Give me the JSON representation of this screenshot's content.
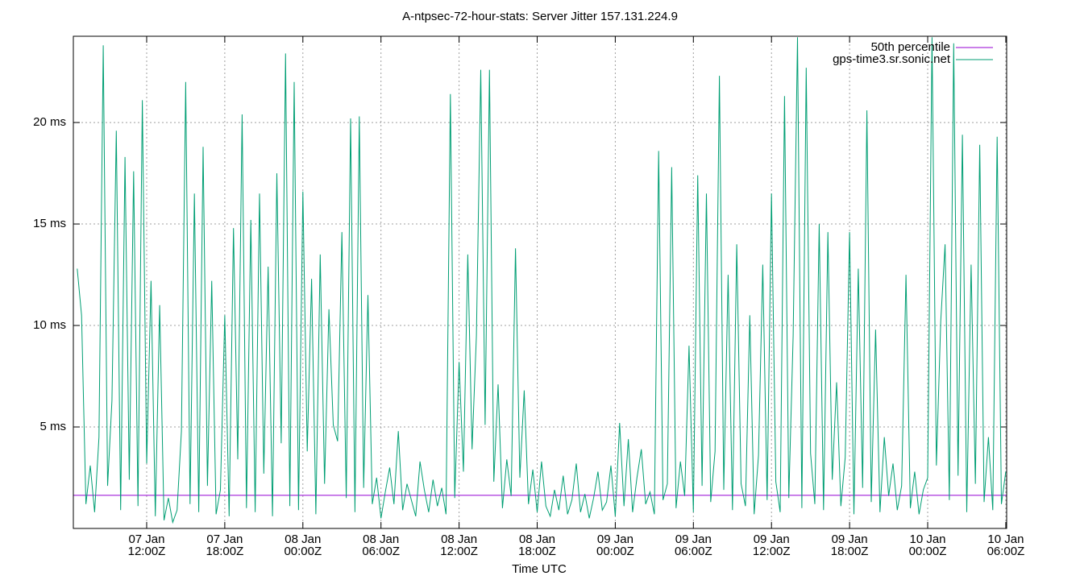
{
  "chart_data": {
    "type": "line",
    "title": "A-ntpsec-72-hour-stats: Server Jitter 157.131.224.9",
    "xlabel": "Time UTC",
    "xlim": [
      "07 Jan 06:22Z",
      "10 Jan 06:04Z"
    ],
    "ylim": [
      0,
      24.25
    ],
    "grid": true,
    "legend": "top-right",
    "yticks": [
      {
        "value": 5,
        "label": "5 ms"
      },
      {
        "value": 10,
        "label": "10 ms"
      },
      {
        "value": 15,
        "label": "15 ms"
      },
      {
        "value": 20,
        "label": "20 ms"
      }
    ],
    "xticks": [
      {
        "value": "07 Jan 12:00Z",
        "label": [
          "07 Jan",
          "12:00Z"
        ]
      },
      {
        "value": "07 Jan 18:00Z",
        "label": [
          "07 Jan",
          "18:00Z"
        ]
      },
      {
        "value": "08 Jan 00:00Z",
        "label": [
          "08 Jan",
          "00:00Z"
        ]
      },
      {
        "value": "08 Jan 06:00Z",
        "label": [
          "08 Jan",
          "06:00Z"
        ]
      },
      {
        "value": "08 Jan 12:00Z",
        "label": [
          "08 Jan",
          "12:00Z"
        ]
      },
      {
        "value": "08 Jan 18:00Z",
        "label": [
          "08 Jan",
          "18:00Z"
        ]
      },
      {
        "value": "09 Jan 00:00Z",
        "label": [
          "09 Jan",
          "00:00Z"
        ]
      },
      {
        "value": "09 Jan 06:00Z",
        "label": [
          "09 Jan",
          "06:00Z"
        ]
      },
      {
        "value": "09 Jan 12:00Z",
        "label": [
          "09 Jan",
          "12:00Z"
        ]
      },
      {
        "value": "09 Jan 18:00Z",
        "label": [
          "09 Jan",
          "18:00Z"
        ]
      },
      {
        "value": "10 Jan 00:00Z",
        "label": [
          "10 Jan",
          "00:00Z"
        ]
      },
      {
        "value": "10 Jan 06:00Z",
        "label": [
          "10 Jan",
          "06:00Z"
        ]
      }
    ],
    "x": [
      "07 Jan 06:40Z",
      "07 Jan 07:00Z",
      "07 Jan 07:20Z",
      "07 Jan 07:40Z",
      "07 Jan 08:00Z",
      "07 Jan 08:20Z",
      "07 Jan 08:40Z",
      "07 Jan 09:00Z",
      "07 Jan 09:20Z",
      "07 Jan 09:40Z",
      "07 Jan 10:00Z",
      "07 Jan 10:20Z",
      "07 Jan 10:40Z",
      "07 Jan 11:00Z",
      "07 Jan 11:20Z",
      "07 Jan 11:40Z",
      "07 Jan 12:00Z",
      "07 Jan 12:20Z",
      "07 Jan 12:40Z",
      "07 Jan 13:00Z",
      "07 Jan 13:20Z",
      "07 Jan 13:40Z",
      "07 Jan 14:00Z",
      "07 Jan 14:20Z",
      "07 Jan 14:40Z",
      "07 Jan 15:00Z",
      "07 Jan 15:20Z",
      "07 Jan 15:40Z",
      "07 Jan 16:00Z",
      "07 Jan 16:20Z",
      "07 Jan 16:40Z",
      "07 Jan 17:00Z",
      "07 Jan 17:20Z",
      "07 Jan 17:40Z",
      "07 Jan 18:00Z",
      "07 Jan 18:20Z",
      "07 Jan 18:40Z",
      "07 Jan 19:00Z",
      "07 Jan 19:20Z",
      "07 Jan 19:40Z",
      "07 Jan 20:00Z",
      "07 Jan 20:20Z",
      "07 Jan 20:40Z",
      "07 Jan 21:00Z",
      "07 Jan 21:20Z",
      "07 Jan 21:40Z",
      "07 Jan 22:00Z",
      "07 Jan 22:20Z",
      "07 Jan 22:40Z",
      "07 Jan 23:00Z",
      "07 Jan 23:20Z",
      "07 Jan 23:40Z",
      "08 Jan 00:00Z",
      "08 Jan 00:20Z",
      "08 Jan 00:40Z",
      "08 Jan 01:00Z",
      "08 Jan 01:20Z",
      "08 Jan 01:40Z",
      "08 Jan 02:00Z",
      "08 Jan 02:20Z",
      "08 Jan 02:40Z",
      "08 Jan 03:00Z",
      "08 Jan 03:20Z",
      "08 Jan 03:40Z",
      "08 Jan 04:00Z",
      "08 Jan 04:20Z",
      "08 Jan 04:40Z",
      "08 Jan 05:00Z",
      "08 Jan 05:20Z",
      "08 Jan 05:40Z",
      "08 Jan 06:00Z",
      "08 Jan 06:20Z",
      "08 Jan 06:40Z",
      "08 Jan 07:00Z",
      "08 Jan 07:20Z",
      "08 Jan 07:40Z",
      "08 Jan 08:00Z",
      "08 Jan 08:20Z",
      "08 Jan 08:40Z",
      "08 Jan 09:00Z",
      "08 Jan 09:20Z",
      "08 Jan 09:40Z",
      "08 Jan 10:00Z",
      "08 Jan 10:20Z",
      "08 Jan 10:40Z",
      "08 Jan 11:00Z",
      "08 Jan 11:20Z",
      "08 Jan 11:40Z",
      "08 Jan 12:00Z",
      "08 Jan 12:20Z",
      "08 Jan 12:40Z",
      "08 Jan 13:00Z",
      "08 Jan 13:20Z",
      "08 Jan 13:40Z",
      "08 Jan 14:00Z",
      "08 Jan 14:20Z",
      "08 Jan 14:40Z",
      "08 Jan 15:00Z",
      "08 Jan 15:20Z",
      "08 Jan 15:40Z",
      "08 Jan 16:00Z",
      "08 Jan 16:20Z",
      "08 Jan 16:40Z",
      "08 Jan 17:00Z",
      "08 Jan 17:20Z",
      "08 Jan 17:40Z",
      "08 Jan 18:00Z",
      "08 Jan 18:20Z",
      "08 Jan 18:40Z",
      "08 Jan 19:00Z",
      "08 Jan 19:20Z",
      "08 Jan 19:40Z",
      "08 Jan 20:00Z",
      "08 Jan 20:20Z",
      "08 Jan 20:40Z",
      "08 Jan 21:00Z",
      "08 Jan 21:20Z",
      "08 Jan 21:40Z",
      "08 Jan 22:00Z",
      "08 Jan 22:20Z",
      "08 Jan 22:40Z",
      "08 Jan 23:00Z",
      "08 Jan 23:20Z",
      "08 Jan 23:40Z",
      "09 Jan 00:00Z",
      "09 Jan 00:20Z",
      "09 Jan 00:40Z",
      "09 Jan 01:00Z",
      "09 Jan 01:20Z",
      "09 Jan 01:40Z",
      "09 Jan 02:00Z",
      "09 Jan 02:20Z",
      "09 Jan 02:40Z",
      "09 Jan 03:00Z",
      "09 Jan 03:20Z",
      "09 Jan 03:40Z",
      "09 Jan 04:00Z",
      "09 Jan 04:20Z",
      "09 Jan 04:40Z",
      "09 Jan 05:00Z",
      "09 Jan 05:20Z",
      "09 Jan 05:40Z",
      "09 Jan 06:00Z",
      "09 Jan 06:20Z",
      "09 Jan 06:40Z",
      "09 Jan 07:00Z",
      "09 Jan 07:20Z",
      "09 Jan 07:40Z",
      "09 Jan 08:00Z",
      "09 Jan 08:20Z",
      "09 Jan 08:40Z",
      "09 Jan 09:00Z",
      "09 Jan 09:20Z",
      "09 Jan 09:40Z",
      "09 Jan 10:00Z",
      "09 Jan 10:20Z",
      "09 Jan 10:40Z",
      "09 Jan 11:00Z",
      "09 Jan 11:20Z",
      "09 Jan 11:40Z",
      "09 Jan 12:00Z",
      "09 Jan 12:20Z",
      "09 Jan 12:40Z",
      "09 Jan 13:00Z",
      "09 Jan 13:20Z",
      "09 Jan 13:40Z",
      "09 Jan 14:00Z",
      "09 Jan 14:20Z",
      "09 Jan 14:40Z",
      "09 Jan 15:00Z",
      "09 Jan 15:20Z",
      "09 Jan 15:40Z",
      "09 Jan 16:00Z",
      "09 Jan 16:20Z",
      "09 Jan 16:40Z",
      "09 Jan 17:00Z",
      "09 Jan 17:20Z",
      "09 Jan 17:40Z",
      "09 Jan 18:00Z",
      "09 Jan 18:20Z",
      "09 Jan 18:40Z",
      "09 Jan 19:00Z",
      "09 Jan 19:20Z",
      "09 Jan 19:40Z",
      "09 Jan 20:00Z",
      "09 Jan 20:20Z",
      "09 Jan 20:40Z",
      "09 Jan 21:00Z",
      "09 Jan 21:20Z",
      "09 Jan 21:40Z",
      "09 Jan 22:00Z",
      "09 Jan 22:20Z",
      "09 Jan 22:40Z",
      "09 Jan 23:00Z",
      "09 Jan 23:20Z",
      "09 Jan 23:40Z",
      "10 Jan 00:00Z",
      "10 Jan 00:20Z",
      "10 Jan 00:40Z",
      "10 Jan 01:00Z",
      "10 Jan 01:20Z",
      "10 Jan 01:40Z",
      "10 Jan 02:00Z",
      "10 Jan 02:20Z",
      "10 Jan 02:40Z",
      "10 Jan 03:00Z",
      "10 Jan 03:20Z",
      "10 Jan 03:40Z",
      "10 Jan 04:00Z",
      "10 Jan 04:20Z",
      "10 Jan 04:40Z",
      "10 Jan 05:00Z",
      "10 Jan 05:20Z",
      "10 Jan 05:40Z",
      "10 Jan 06:00Z"
    ],
    "percentile": {
      "name": "50th percentile",
      "color": "#9400d3",
      "value": 1.63
    },
    "series": [
      {
        "name": "gps-time3.sr.sonic.net",
        "color": "#009e73",
        "values": [
          12.8,
          10.5,
          1.2,
          3.1,
          0.8,
          4.5,
          23.8,
          2.1,
          6.3,
          19.6,
          0.9,
          18.3,
          2.4,
          17.6,
          1.1,
          21.1,
          3.2,
          12.2,
          0.6,
          11.0,
          0.4,
          1.5,
          0.3,
          0.9,
          4.8,
          22.0,
          1.2,
          16.5,
          0.8,
          18.8,
          2.1,
          12.2,
          0.7,
          1.9,
          10.5,
          0.6,
          14.8,
          3.4,
          20.4,
          1.0,
          15.2,
          0.8,
          16.5,
          2.7,
          12.9,
          0.6,
          17.5,
          4.2,
          23.4,
          1.1,
          22.0,
          0.9,
          16.6,
          3.8,
          12.3,
          0.7,
          13.5,
          2.2,
          10.8,
          5.1,
          4.3,
          14.6,
          1.5,
          20.2,
          0.8,
          20.3,
          2.0,
          11.5,
          1.2,
          2.5,
          0.5,
          1.8,
          3.0,
          1.2,
          4.8,
          0.9,
          2.2,
          1.4,
          0.6,
          3.3,
          1.9,
          0.8,
          2.4,
          1.1,
          2.0,
          0.7,
          21.4,
          1.5,
          8.2,
          2.8,
          13.5,
          3.9,
          9.5,
          22.6,
          5.1,
          22.6,
          2.3,
          7.1,
          1.0,
          3.4,
          1.6,
          13.8,
          2.5,
          6.8,
          1.2,
          2.9,
          0.8,
          3.3,
          1.1,
          0.6,
          1.9,
          0.9,
          2.6,
          0.7,
          1.4,
          3.2,
          0.8,
          1.7,
          0.5,
          1.5,
          2.8,
          0.9,
          1.3,
          3.1,
          0.6,
          5.2,
          1.1,
          4.4,
          0.8,
          2.5,
          3.9,
          1.2,
          1.8,
          0.7,
          18.6,
          1.4,
          2.2,
          17.8,
          1.0,
          3.3,
          1.6,
          9.0,
          0.8,
          17.4,
          2.1,
          16.5,
          1.3,
          3.8,
          22.3,
          1.9,
          12.5,
          0.9,
          14.0,
          2.2,
          1.1,
          10.5,
          0.7,
          3.6,
          13.0,
          1.4,
          16.5,
          2.3,
          0.8,
          21.3,
          1.5,
          9.5,
          24.2,
          1.0,
          22.7,
          3.7,
          1.2,
          15.0,
          0.9,
          14.6,
          2.4,
          7.2,
          1.1,
          3.5,
          14.6,
          0.7,
          12.8,
          2.0,
          20.6,
          1.3,
          9.8,
          0.8,
          4.5,
          1.6,
          3.2,
          0.9,
          2.1,
          12.5,
          1.0,
          2.8,
          0.7,
          1.9,
          2.5,
          24.2,
          3.1,
          10.2,
          14.0,
          1.4,
          23.9,
          2.6,
          19.4,
          0.8,
          13.0,
          2.2,
          18.9,
          1.3,
          4.5,
          0.9,
          19.3,
          1.2,
          2.8
        ]
      }
    ]
  }
}
